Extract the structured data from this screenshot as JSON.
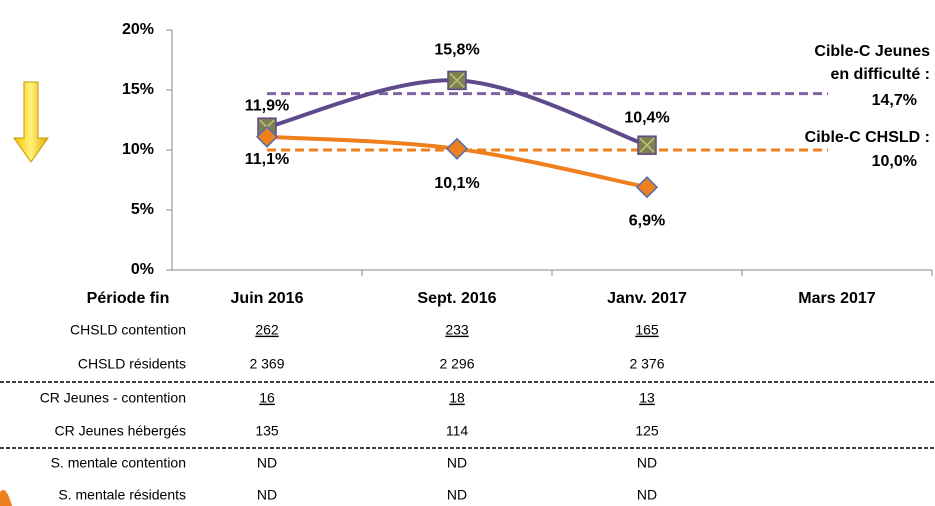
{
  "chart_data": {
    "type": "line",
    "categories": [
      "Juin 2016",
      "Sept. 2016",
      "Janv. 2017",
      "Mars 2017"
    ],
    "series": [
      {
        "color": "#5f4a8b",
        "marker": "square",
        "values": [
          11.9,
          15.8,
          10.4,
          null
        ],
        "value_labels": [
          "11,9%",
          "15,8%",
          "10,4%",
          null
        ]
      },
      {
        "color": "#f07f1e",
        "marker": "diamond",
        "values": [
          11.1,
          10.1,
          6.9,
          null
        ],
        "value_labels": [
          "11,1%",
          "10,1%",
          "6,9%",
          null
        ]
      }
    ],
    "targets": [
      {
        "label": [
          "Cible-C  Jeunes",
          "en difficulté :"
        ],
        "value": 14.7,
        "value_label": "14,7%",
        "color": "#8064a2"
      },
      {
        "label": [
          "Cible-C  CHSLD :"
        ],
        "value": 10.0,
        "value_label": "10,0%",
        "color": "#f07f1e"
      }
    ],
    "ylim": [
      0,
      20
    ],
    "yticks": [
      {
        "value": 0,
        "label": "0%"
      },
      {
        "value": 5,
        "label": "5%"
      },
      {
        "value": 10,
        "label": "10%"
      },
      {
        "value": 15,
        "label": "15%"
      },
      {
        "value": 20,
        "label": "20%"
      }
    ],
    "table": {
      "header": "Période fin",
      "rows": [
        {
          "label": "CHSLD contention",
          "underline": true,
          "cells": [
            "262",
            "233",
            "165",
            null
          ]
        },
        {
          "label": "CHSLD résidents",
          "underline": false,
          "cells": [
            "2 369",
            "2 296",
            "2 376",
            null
          ]
        },
        {
          "label": "CR Jeunes - contention",
          "underline": true,
          "cells": [
            "16",
            "18",
            "13",
            null
          ]
        },
        {
          "label": "CR Jeunes hébergés",
          "underline": false,
          "cells": [
            "135",
            "114",
            "125",
            null
          ]
        },
        {
          "label": "S. mentale contention",
          "underline": false,
          "cells": [
            "ND",
            "ND",
            "ND",
            null
          ]
        },
        {
          "label": "S. mentale résidents",
          "underline": false,
          "cells": [
            "ND",
            "ND",
            "ND",
            null
          ]
        }
      ]
    }
  }
}
